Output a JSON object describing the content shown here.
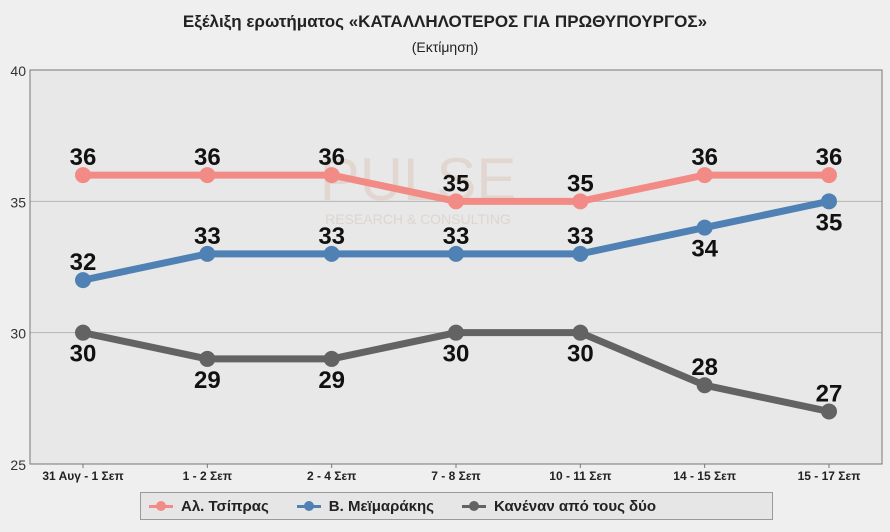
{
  "title": "Εξέλιξη ερωτήματος «ΚΑΤΑΛΛΗΛΟΤΕΡΟΣ ΓΙΑ ΠΡΩΘΥΠΟΥΡΓΟΣ»",
  "subtitle": "(Εκτίμηση)",
  "watermark": {
    "line1": "PULSE",
    "line2": "RESEARCH & CONSULTING"
  },
  "chart_data": {
    "type": "line",
    "title": "Εξέλιξη ερωτήματος «ΚΑΤΑΛΛΗΛΟΤΕΡΟΣ ΓΙΑ ΠΡΩΘΥΠΟΥΡΓΟΣ»",
    "subtitle": "(Εκτίμηση)",
    "categories": [
      "31 Αυγ - 1 Σεπ",
      "1 - 2 Σεπ",
      "2 - 4 Σεπ",
      "7 - 8 Σεπ",
      "10 - 11 Σεπ",
      "14 - 15 Σεπ",
      "15 - 17 Σεπ"
    ],
    "ylim": [
      25,
      40
    ],
    "yticks": [
      25,
      30,
      35,
      40
    ],
    "grid": true,
    "legend": "bottom",
    "series": [
      {
        "name": "Αλ. Τσίπρας",
        "color": "#f28b86",
        "labelPos": "above",
        "values": [
          36,
          36,
          36,
          35,
          35,
          36,
          36
        ]
      },
      {
        "name": "Β. Μεϊμαράκης",
        "color": "#4f81b4",
        "labelPos": [
          "above",
          "above",
          "above",
          "above",
          "above",
          "below",
          "below"
        ],
        "values": [
          32,
          33,
          33,
          33,
          33,
          34,
          35
        ]
      },
      {
        "name": "Κανέναν από τους δύο",
        "color": "#636363",
        "labelPos": [
          "below",
          "below",
          "below",
          "below",
          "below",
          "above",
          "above"
        ],
        "values": [
          30,
          29,
          29,
          30,
          30,
          28,
          27
        ]
      }
    ]
  }
}
